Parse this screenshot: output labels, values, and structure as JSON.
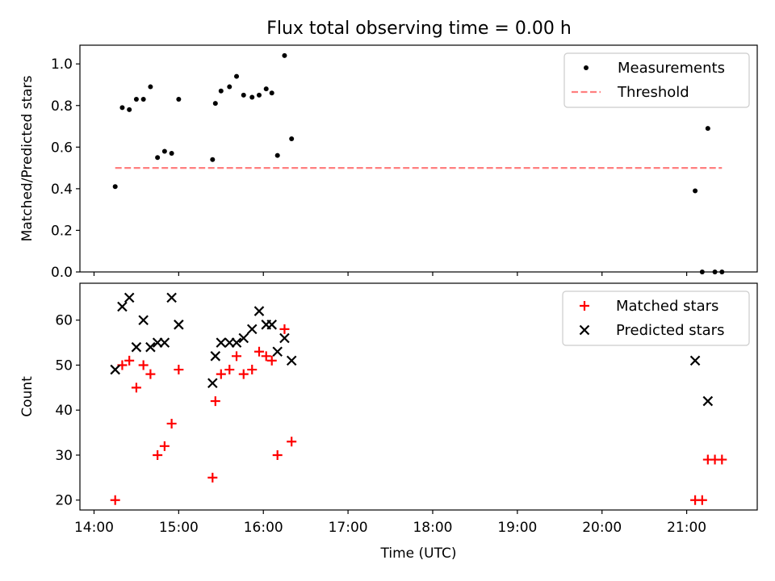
{
  "figure": {
    "title": "Flux total observing time = 0.00 h"
  },
  "chart_data": [
    {
      "type": "scatter",
      "ylabel": "Matched/Predicted stars",
      "xlabel": "",
      "xlim": [
        "13:50",
        "21:50"
      ],
      "ylim": [
        0,
        1.09
      ],
      "yticks": [
        0.0,
        0.2,
        0.4,
        0.6,
        0.8,
        1.0
      ],
      "ytick_labels": [
        "0.0",
        "0.2",
        "0.4",
        "0.6",
        "0.8",
        "1.0"
      ],
      "xticks": [
        "14:00",
        "15:00",
        "16:00",
        "17:00",
        "18:00",
        "19:00",
        "20:00",
        "21:00"
      ],
      "grid": false,
      "legend_position": "top-right",
      "series": [
        {
          "name": "Measurements",
          "kind": "scatter",
          "marker": "dot",
          "color": "#000000",
          "points": [
            [
              "14:15",
              0.41
            ],
            [
              "14:20",
              0.79
            ],
            [
              "14:25",
              0.78
            ],
            [
              "14:30",
              0.83
            ],
            [
              "14:35",
              0.83
            ],
            [
              "14:40",
              0.89
            ],
            [
              "14:45",
              0.55
            ],
            [
              "14:50",
              0.58
            ],
            [
              "14:55",
              0.57
            ],
            [
              "15:00",
              0.83
            ],
            [
              "15:24",
              0.54
            ],
            [
              "15:26",
              0.81
            ],
            [
              "15:30",
              0.87
            ],
            [
              "15:36",
              0.89
            ],
            [
              "15:41",
              0.94
            ],
            [
              "15:46",
              0.85
            ],
            [
              "15:52",
              0.84
            ],
            [
              "15:57",
              0.85
            ],
            [
              "16:02",
              0.88
            ],
            [
              "16:06",
              0.86
            ],
            [
              "16:10",
              0.56
            ],
            [
              "16:15",
              1.04
            ],
            [
              "16:20",
              0.64
            ],
            [
              "21:06",
              0.39
            ],
            [
              "21:11",
              0.0
            ],
            [
              "21:15",
              0.69
            ],
            [
              "21:20",
              0.0
            ],
            [
              "21:25",
              0.0
            ]
          ]
        },
        {
          "name": "Threshold",
          "kind": "line",
          "style": "dashed",
          "color": "#ff7f7f",
          "points": [
            [
              "14:15",
              0.5
            ],
            [
              "21:25",
              0.5
            ]
          ]
        }
      ]
    },
    {
      "type": "scatter",
      "xlabel": "Time (UTC)",
      "ylabel": "Count",
      "xlim": [
        "13:50",
        "21:50"
      ],
      "ylim": [
        17.8,
        68.2
      ],
      "yticks": [
        20,
        30,
        40,
        50,
        60
      ],
      "ytick_labels": [
        "20",
        "30",
        "40",
        "50",
        "60"
      ],
      "xticks": [
        "14:00",
        "15:00",
        "16:00",
        "17:00",
        "18:00",
        "19:00",
        "20:00",
        "21:00"
      ],
      "xtick_labels": [
        "14:00",
        "15:00",
        "16:00",
        "17:00",
        "18:00",
        "19:00",
        "20:00",
        "21:00"
      ],
      "grid": false,
      "legend_position": "top-right",
      "series": [
        {
          "name": "Matched stars",
          "kind": "scatter",
          "marker": "plus",
          "color": "#ff0000",
          "points": [
            [
              "14:15",
              20
            ],
            [
              "14:20",
              50
            ],
            [
              "14:25",
              51
            ],
            [
              "14:30",
              45
            ],
            [
              "14:35",
              50
            ],
            [
              "14:40",
              48
            ],
            [
              "14:45",
              30
            ],
            [
              "14:50",
              32
            ],
            [
              "14:55",
              37
            ],
            [
              "15:00",
              49
            ],
            [
              "15:24",
              25
            ],
            [
              "15:26",
              42
            ],
            [
              "15:30",
              48
            ],
            [
              "15:36",
              49
            ],
            [
              "15:41",
              52
            ],
            [
              "15:46",
              48
            ],
            [
              "15:52",
              49
            ],
            [
              "15:57",
              53
            ],
            [
              "16:02",
              52
            ],
            [
              "16:06",
              51
            ],
            [
              "16:10",
              30
            ],
            [
              "16:15",
              58
            ],
            [
              "16:20",
              33
            ],
            [
              "21:06",
              20
            ],
            [
              "21:11",
              20
            ],
            [
              "21:15",
              29
            ],
            [
              "21:20",
              29
            ],
            [
              "21:25",
              29
            ]
          ]
        },
        {
          "name": "Predicted stars",
          "kind": "scatter",
          "marker": "x",
          "color": "#000000",
          "points": [
            [
              "14:15",
              49
            ],
            [
              "14:20",
              63
            ],
            [
              "14:25",
              65
            ],
            [
              "14:30",
              54
            ],
            [
              "14:35",
              60
            ],
            [
              "14:40",
              54
            ],
            [
              "14:45",
              55
            ],
            [
              "14:50",
              55
            ],
            [
              "14:55",
              65
            ],
            [
              "15:00",
              59
            ],
            [
              "15:24",
              46
            ],
            [
              "15:26",
              52
            ],
            [
              "15:30",
              55
            ],
            [
              "15:36",
              55
            ],
            [
              "15:41",
              55
            ],
            [
              "15:46",
              56
            ],
            [
              "15:52",
              58
            ],
            [
              "15:57",
              62
            ],
            [
              "16:02",
              59
            ],
            [
              "16:06",
              59
            ],
            [
              "16:10",
              53
            ],
            [
              "16:15",
              56
            ],
            [
              "16:20",
              51
            ],
            [
              "21:06",
              51
            ],
            [
              "21:15",
              42
            ]
          ]
        }
      ]
    }
  ]
}
